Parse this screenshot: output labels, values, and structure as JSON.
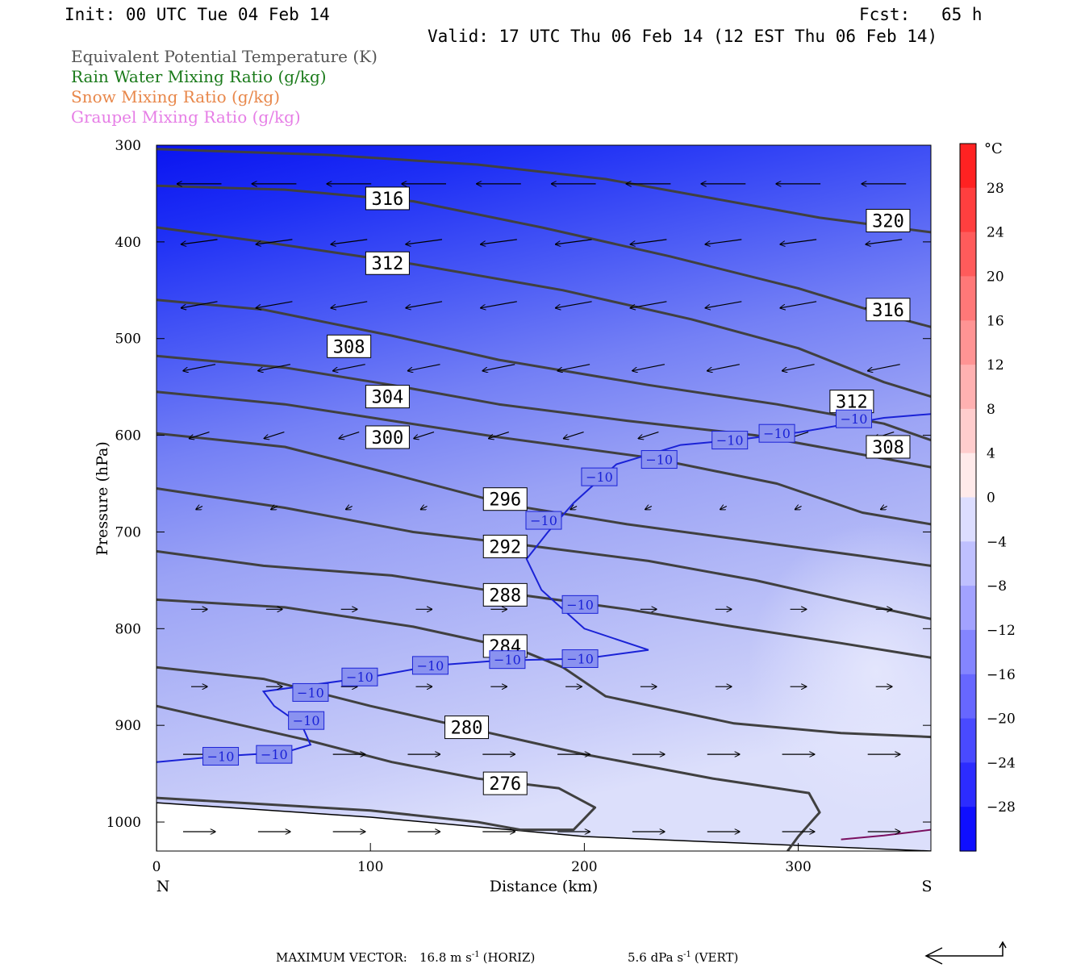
{
  "header": {
    "init": "Init: 00 UTC Tue 04 Feb 14",
    "fcst_label": "Fcst:",
    "fcst_value": "65 h",
    "valid": "Valid: 17 UTC Thu 06 Feb 14 (12 EST Thu 06 Feb 14)"
  },
  "legend": [
    {
      "label": "Equivalent Potential Temperature (K)",
      "color": "#555555"
    },
    {
      "label": "Rain Water Mixing Ratio (g/kg)",
      "color": "#1a7a1a"
    },
    {
      "label": "Snow Mixing Ratio (g/kg)",
      "color": "#e8874a"
    },
    {
      "label": "Graupel Mixing Ratio (g/kg)",
      "color": "#e67ee6"
    }
  ],
  "chart_data": {
    "type": "cross-section",
    "xlabel": "Distance (km)",
    "ylabel": "Pressure (hPa)",
    "xlim": [
      0,
      362
    ],
    "ylim": [
      1030,
      300
    ],
    "x_ticks": [
      "0",
      "100",
      "200",
      "300"
    ],
    "y_ticks": [
      "300",
      "400",
      "500",
      "600",
      "700",
      "800",
      "900",
      "1000"
    ],
    "x_ends": {
      "left": "N",
      "right": "S"
    },
    "colorbar": {
      "unit": "°C",
      "labels": [
        "28",
        "24",
        "20",
        "16",
        "12",
        "8",
        "4",
        "0",
        "−4",
        "−8",
        "−12",
        "−16",
        "−20",
        "−24",
        "−28"
      ],
      "min": -32,
      "max": 32,
      "step": 4
    },
    "theta_e_contours": [
      {
        "value": 276,
        "label": "276",
        "points": [
          [
            0,
            975
          ],
          [
            100,
            988
          ],
          [
            150,
            1000
          ],
          [
            170,
            1008
          ],
          [
            195,
            1008
          ],
          [
            205,
            985
          ],
          [
            188,
            965
          ],
          [
            150,
            955
          ],
          [
            110,
            938
          ],
          [
            70,
            915
          ],
          [
            30,
            895
          ],
          [
            0,
            880
          ]
        ],
        "label_at": [
          163,
          960
        ]
      },
      {
        "value": 280,
        "label": "280",
        "points": [
          [
            0,
            840
          ],
          [
            50,
            852
          ],
          [
            100,
            880
          ],
          [
            150,
            905
          ],
          [
            200,
            930
          ],
          [
            260,
            955
          ],
          [
            305,
            970
          ],
          [
            310,
            990
          ],
          [
            300,
            1015
          ],
          [
            295,
            1030
          ]
        ],
        "label_at": [
          145,
          902
        ]
      },
      {
        "value": 284,
        "label": "284",
        "points": [
          [
            0,
            770
          ],
          [
            60,
            778
          ],
          [
            120,
            798
          ],
          [
            170,
            822
          ],
          [
            190,
            840
          ],
          [
            210,
            870
          ],
          [
            270,
            898
          ],
          [
            320,
            908
          ],
          [
            362,
            912
          ]
        ],
        "label_at": [
          163,
          818
        ]
      },
      {
        "value": 288,
        "label": "288",
        "points": [
          [
            0,
            720
          ],
          [
            50,
            735
          ],
          [
            110,
            745
          ],
          [
            160,
            762
          ],
          [
            220,
            780
          ],
          [
            270,
            798
          ],
          [
            320,
            815
          ],
          [
            362,
            830
          ]
        ],
        "label_at": [
          163,
          765
        ]
      },
      {
        "value": 292,
        "label": "292",
        "points": [
          [
            0,
            655
          ],
          [
            60,
            675
          ],
          [
            120,
            700
          ],
          [
            170,
            713
          ],
          [
            230,
            730
          ],
          [
            280,
            750
          ],
          [
            320,
            770
          ],
          [
            362,
            790
          ]
        ],
        "label_at": [
          163,
          715
        ]
      },
      {
        "value": 296,
        "label": "296",
        "points": [
          [
            0,
            598
          ],
          [
            60,
            612
          ],
          [
            110,
            640
          ],
          [
            165,
            672
          ],
          [
            220,
            692
          ],
          [
            280,
            710
          ],
          [
            330,
            725
          ],
          [
            362,
            735
          ]
        ],
        "label_at": [
          163,
          666
        ]
      },
      {
        "value": 300,
        "label": "300",
        "points": [
          [
            0,
            555
          ],
          [
            60,
            568
          ],
          [
            110,
            585
          ],
          [
            160,
            602
          ],
          [
            230,
            623
          ],
          [
            290,
            650
          ],
          [
            330,
            680
          ],
          [
            362,
            692
          ]
        ],
        "label_at": [
          108,
          602
        ]
      },
      {
        "value": 304,
        "label": "304",
        "points": [
          [
            0,
            518
          ],
          [
            60,
            530
          ],
          [
            110,
            548
          ],
          [
            160,
            568
          ],
          [
            220,
            585
          ],
          [
            280,
            600
          ],
          [
            330,
            620
          ],
          [
            362,
            633
          ]
        ],
        "label_at": [
          108,
          560
        ]
      },
      {
        "value": 308,
        "label": "308",
        "points": [
          [
            0,
            460
          ],
          [
            50,
            470
          ],
          [
            110,
            497
          ],
          [
            160,
            522
          ],
          [
            230,
            548
          ],
          [
            290,
            568
          ],
          [
            340,
            588
          ],
          [
            362,
            605
          ]
        ],
        "label_at": [
          90,
          508
        ]
      },
      {
        "value": 312,
        "label": "312",
        "points": [
          [
            0,
            385
          ],
          [
            50,
            400
          ],
          [
            120,
            423
          ],
          [
            190,
            450
          ],
          [
            250,
            480
          ],
          [
            300,
            510
          ],
          [
            340,
            545
          ],
          [
            362,
            560
          ]
        ],
        "label_at": [
          108,
          422
        ]
      },
      {
        "value": 316,
        "label": "316",
        "points": [
          [
            0,
            342
          ],
          [
            60,
            346
          ],
          [
            120,
            358
          ],
          [
            180,
            385
          ],
          [
            240,
            415
          ],
          [
            300,
            448
          ],
          [
            340,
            475
          ],
          [
            362,
            488
          ]
        ],
        "label_at": [
          108,
          355
        ]
      },
      {
        "value": 320,
        "label": "320",
        "points": [
          [
            0,
            304
          ],
          [
            80,
            310
          ],
          [
            150,
            320
          ],
          [
            210,
            335
          ],
          [
            260,
            355
          ],
          [
            310,
            375
          ],
          [
            362,
            390
          ]
        ],
        "label_at": [
          342,
          378
        ]
      },
      {
        "value": 316,
        "label": "316",
        "points": [],
        "label_at": [
          342,
          470
        ]
      },
      {
        "value": 312,
        "label": "312",
        "points": [],
        "label_at": [
          325,
          565
        ]
      },
      {
        "value": 308,
        "label": "308",
        "points": [],
        "label_at": [
          342,
          612
        ]
      }
    ],
    "isotherm_minus10": {
      "value": -10,
      "label": "−10",
      "points": [
        [
          0,
          938
        ],
        [
          30,
          932
        ],
        [
          60,
          928
        ],
        [
          72,
          920
        ],
        [
          68,
          900
        ],
        [
          55,
          880
        ],
        [
          50,
          865
        ],
        [
          100,
          850
        ],
        [
          130,
          838
        ],
        [
          160,
          833
        ],
        [
          200,
          831
        ],
        [
          230,
          822
        ],
        [
          200,
          800
        ],
        [
          180,
          760
        ],
        [
          173,
          728
        ],
        [
          183,
          700
        ],
        [
          195,
          670
        ],
        [
          205,
          650
        ],
        [
          215,
          630
        ],
        [
          245,
          610
        ],
        [
          270,
          605
        ],
        [
          300,
          597
        ],
        [
          340,
          582
        ],
        [
          362,
          578
        ]
      ],
      "label_positions": [
        [
          30,
          932
        ],
        [
          55,
          930
        ],
        [
          70,
          895
        ],
        [
          72,
          866
        ],
        [
          95,
          850
        ],
        [
          128,
          838
        ],
        [
          164,
          832
        ],
        [
          198,
          831
        ],
        [
          198,
          775
        ],
        [
          181,
          688
        ],
        [
          207,
          643
        ],
        [
          235,
          625
        ],
        [
          268,
          605
        ],
        [
          290,
          598
        ],
        [
          326,
          583
        ]
      ]
    },
    "graupel_contour": {
      "points": [
        [
          320,
          1018
        ],
        [
          340,
          1014
        ],
        [
          362,
          1008
        ]
      ]
    },
    "vector_reference": {
      "label": "MAXIMUM VECTOR:",
      "horiz": "16.8 m s",
      "horiz_unit_suffix": "(HORIZ)",
      "vert": "5.6 dPa s",
      "vert_unit_suffix": "(VERT)",
      "exponent": "-1"
    }
  }
}
